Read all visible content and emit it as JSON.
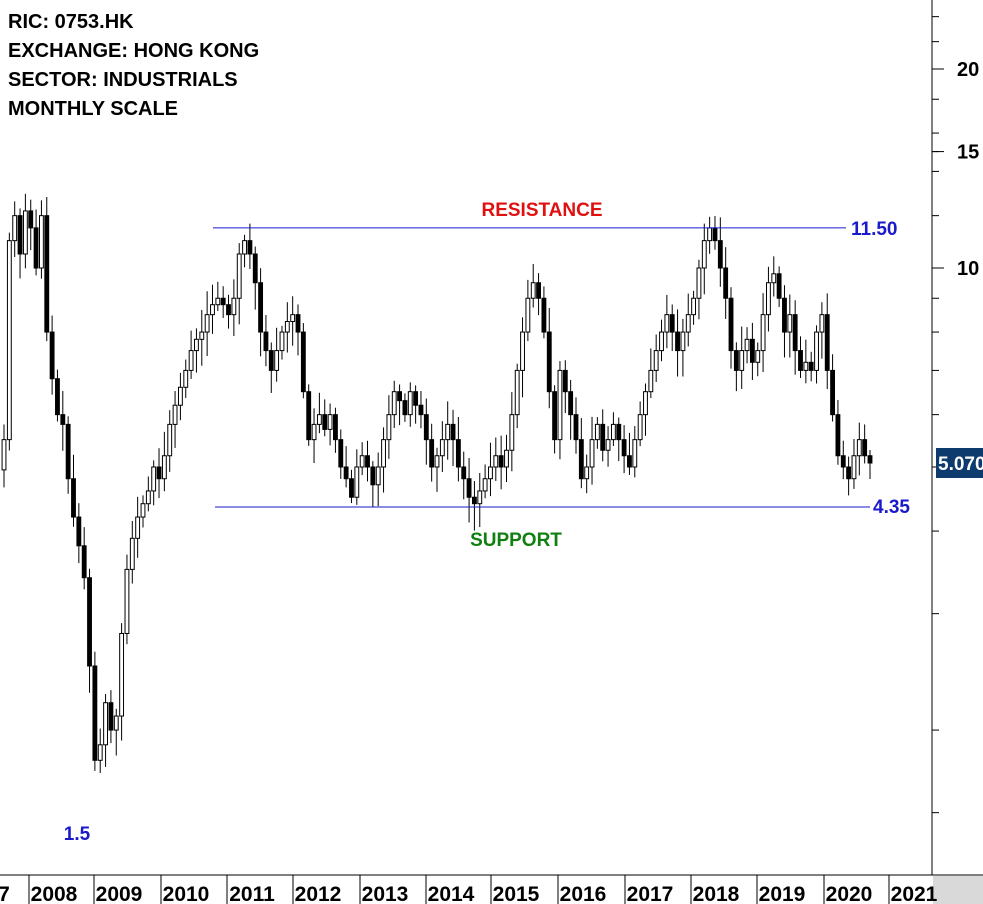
{
  "info": {
    "ric": "RIC: 0753.HK",
    "exchange": "EXCHANGE: HONG KONG",
    "sector": "SECTOR: INDUSTRIALS",
    "scale": "MONTHLY SCALE"
  },
  "colors": {
    "line": "#1a1acc",
    "resistance_label": "#e01010",
    "support_label": "#108010",
    "price_badge_bg": "#0d3b6e",
    "candle": "#000000"
  },
  "chart_data": {
    "type": "candlestick",
    "scale": "log",
    "y_ticks": [
      20,
      15,
      10
    ],
    "y_tick_labels": [
      "20",
      "15",
      "10"
    ],
    "x_labels": [
      "7",
      "2008",
      "2009",
      "2010",
      "2011",
      "2012",
      "2013",
      "2014",
      "2015",
      "2016",
      "2017",
      "2018",
      "2019",
      "2020",
      "2021"
    ],
    "last_price": 5.07,
    "last_price_label": "5.070",
    "resistance": {
      "value": 11.5,
      "label": "11.50",
      "name": "RESISTANCE"
    },
    "support": {
      "value": 4.35,
      "label": "4.35",
      "name": "SUPPORT"
    },
    "low_annotation": {
      "value": 1.5,
      "label": "1.5"
    },
    "closes": [
      5.5,
      11.0,
      12.0,
      10.5,
      12.2,
      11.5,
      10.0,
      12.0,
      8.0,
      6.8,
      6.0,
      5.8,
      4.8,
      4.2,
      3.8,
      3.4,
      2.5,
      1.8,
      1.9,
      2.2,
      2.0,
      2.1,
      2.8,
      3.5,
      3.9,
      4.2,
      4.4,
      4.6,
      5.0,
      4.8,
      5.2,
      5.8,
      6.2,
      6.6,
      7.0,
      7.5,
      7.8,
      8.0,
      8.5,
      8.8,
      9.0,
      8.8,
      8.5,
      9.0,
      10.5,
      11.0,
      10.5,
      9.5,
      8.0,
      7.5,
      7.0,
      7.5,
      8.0,
      8.3,
      8.5,
      8.0,
      6.5,
      5.5,
      5.8,
      6.0,
      5.7,
      6.0,
      5.5,
      5.0,
      4.8,
      4.5,
      5.0,
      5.2,
      5.0,
      4.7,
      5.0,
      5.5,
      6.0,
      6.5,
      6.3,
      6.0,
      6.5,
      6.2,
      6.0,
      5.5,
      5.0,
      5.2,
      5.5,
      5.8,
      5.5,
      5.0,
      4.8,
      4.5,
      4.4,
      4.6,
      4.8,
      5.0,
      5.2,
      5.0,
      5.3,
      6.0,
      7.0,
      8.0,
      9.0,
      9.5,
      9.0,
      8.0,
      6.5,
      5.5,
      7.0,
      6.5,
      6.0,
      5.5,
      4.8,
      5.0,
      5.5,
      5.8,
      5.3,
      5.5,
      5.8,
      5.5,
      5.2,
      5.0,
      5.5,
      6.0,
      6.5,
      7.0,
      7.5,
      8.0,
      8.5,
      8.0,
      7.5,
      8.0,
      8.5,
      9.0,
      10.0,
      11.0,
      11.5,
      11.0,
      10.0,
      9.0,
      7.5,
      7.0,
      7.5,
      7.8,
      7.2,
      7.5,
      8.5,
      9.5,
      9.8,
      9.0,
      8.0,
      8.5,
      7.5,
      7.0,
      7.2,
      7.0,
      8.0,
      8.5,
      7.0,
      6.0,
      5.2,
      5.0,
      4.8,
      5.2,
      5.5,
      5.2,
      5.07
    ]
  }
}
